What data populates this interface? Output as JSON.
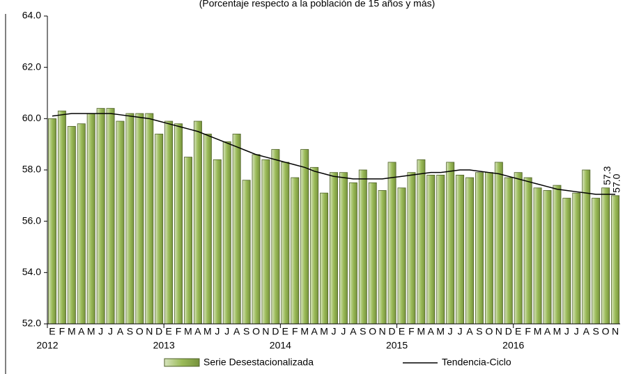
{
  "chart_data": {
    "type": "bar",
    "title": "(Porcentaje respecto a la población de 15 años y más)",
    "categories": [
      "E",
      "F",
      "M",
      "A",
      "M",
      "J",
      "J",
      "A",
      "S",
      "O",
      "N",
      "D",
      "E",
      "F",
      "M",
      "A",
      "M",
      "J",
      "J",
      "A",
      "S",
      "O",
      "N",
      "D",
      "E",
      "F",
      "M",
      "A",
      "M",
      "J",
      "J",
      "A",
      "S",
      "O",
      "N",
      "D",
      "E",
      "F",
      "M",
      "A",
      "M",
      "J",
      "J",
      "A",
      "S",
      "O",
      "N",
      "D",
      "E",
      "F",
      "M",
      "A",
      "M",
      "J",
      "J",
      "A",
      "S",
      "O",
      "N"
    ],
    "x_groups": [
      "2012",
      "2013",
      "2014",
      "2015",
      "2016"
    ],
    "series": [
      {
        "name": "Serie Desestacionalizada",
        "type": "bar",
        "color": "#9bbb59",
        "values": [
          60.0,
          60.3,
          59.7,
          59.8,
          60.2,
          60.4,
          60.4,
          59.9,
          60.2,
          60.2,
          60.2,
          59.4,
          59.9,
          59.8,
          58.5,
          59.9,
          59.4,
          58.4,
          59.1,
          59.4,
          57.6,
          58.6,
          58.4,
          58.8,
          58.3,
          57.7,
          58.8,
          58.1,
          57.1,
          57.9,
          57.9,
          57.5,
          58.0,
          57.5,
          57.2,
          58.3,
          57.3,
          57.9,
          58.4,
          57.8,
          57.8,
          58.3,
          57.8,
          57.7,
          57.9,
          57.9,
          58.3,
          57.7,
          57.9,
          57.7,
          57.3,
          57.2,
          57.4,
          56.9,
          57.1,
          58.0,
          56.9,
          57.3,
          57.0
        ],
        "value_labels": [
          null,
          null,
          null,
          null,
          null,
          null,
          null,
          null,
          null,
          null,
          null,
          null,
          null,
          null,
          null,
          null,
          null,
          null,
          null,
          null,
          null,
          null,
          null,
          null,
          null,
          null,
          null,
          null,
          null,
          null,
          null,
          null,
          null,
          null,
          null,
          null,
          null,
          null,
          null,
          null,
          null,
          null,
          null,
          null,
          null,
          null,
          null,
          null,
          null,
          null,
          null,
          null,
          null,
          null,
          null,
          null,
          null,
          "57.3",
          "57.0"
        ]
      },
      {
        "name": "Tendencia-Ciclo",
        "type": "line",
        "color": "#000000",
        "values": [
          60.1,
          60.15,
          60.2,
          60.2,
          60.2,
          60.2,
          60.2,
          60.15,
          60.1,
          60.05,
          60.0,
          59.9,
          59.8,
          59.7,
          59.6,
          59.5,
          59.35,
          59.2,
          59.05,
          58.9,
          58.75,
          58.6,
          58.5,
          58.4,
          58.3,
          58.2,
          58.1,
          57.95,
          57.85,
          57.75,
          57.7,
          57.65,
          57.65,
          57.65,
          57.65,
          57.7,
          57.75,
          57.8,
          57.85,
          57.9,
          57.9,
          57.95,
          58.0,
          58.0,
          57.95,
          57.9,
          57.85,
          57.75,
          57.65,
          57.55,
          57.45,
          57.35,
          57.25,
          57.2,
          57.15,
          57.1,
          57.05,
          57.05,
          57.05
        ]
      }
    ],
    "ylim": [
      52,
      64
    ],
    "yticks": [
      {
        "value": 52,
        "label": "52.0"
      },
      {
        "value": 54,
        "label": "54.0"
      },
      {
        "value": 56,
        "label": "56.0"
      },
      {
        "value": 58,
        "label": "58.0"
      },
      {
        "value": 60,
        "label": "60.0"
      },
      {
        "value": 62,
        "label": "62.0"
      },
      {
        "value": 64,
        "label": "64.0"
      }
    ],
    "legend": "bottom"
  }
}
